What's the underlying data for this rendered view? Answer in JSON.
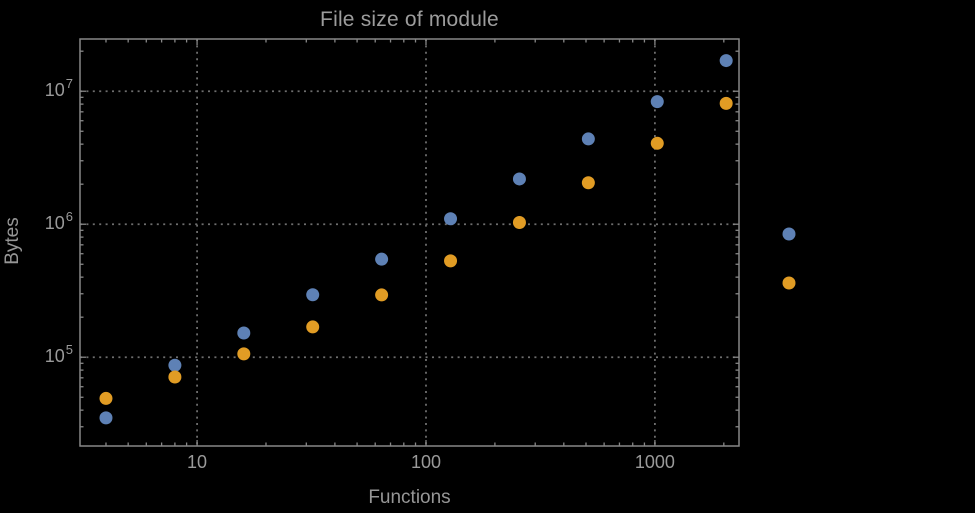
{
  "window": {
    "background": "#000000"
  },
  "chart_data": {
    "type": "scatter",
    "title": "File size of module",
    "xlabel": "Functions",
    "ylabel": "Bytes",
    "x_scale": "log",
    "y_scale": "log",
    "xlim": [
      3.08,
      2330
    ],
    "ylim": [
      21500,
      24700000
    ],
    "x_major_ticks": [
      10,
      100,
      1000
    ],
    "x_tick_labels": [
      "10",
      "100",
      "1000"
    ],
    "y_major_ticks": [
      100000,
      1000000,
      10000000
    ],
    "y_tick_labels": [
      {
        "base": "10",
        "exp": "5"
      },
      {
        "base": "10",
        "exp": "6"
      },
      {
        "base": "10",
        "exp": "7"
      }
    ],
    "grid": "dotted-at-major-ticks",
    "frame": true,
    "x": [
      4,
      8,
      16,
      32,
      64,
      128,
      256,
      512,
      1024,
      2048
    ],
    "series": [
      {
        "name": "series-1-blue",
        "color": "#5e81b5",
        "values": [
          35000,
          87000,
          152000,
          295000,
          546000,
          1100000,
          2190000,
          4380000,
          8350000,
          17000000
        ]
      },
      {
        "name": "series-2-orange",
        "color": "#e19c24",
        "values": [
          49000,
          71000,
          106000,
          169000,
          294000,
          530000,
          1030000,
          2050000,
          4060000,
          8100000
        ]
      }
    ],
    "legend": {
      "position": "outside-right-of-frame",
      "labels_visible": false,
      "entries": [
        {
          "name": "series-1-blue",
          "marker_color": "#5e81b5"
        },
        {
          "name": "series-2-orange",
          "marker_color": "#e19c24"
        }
      ]
    }
  },
  "styles": {
    "frame_color": "#878787",
    "tick_color": "#878787",
    "grid_color": "#6e6e6e",
    "title_color": "#9c9c9c",
    "axis_label_color": "#969696",
    "tick_label_color": "#9a9a9a",
    "series_blue": "#5e81b5",
    "series_orange": "#e19c24"
  }
}
